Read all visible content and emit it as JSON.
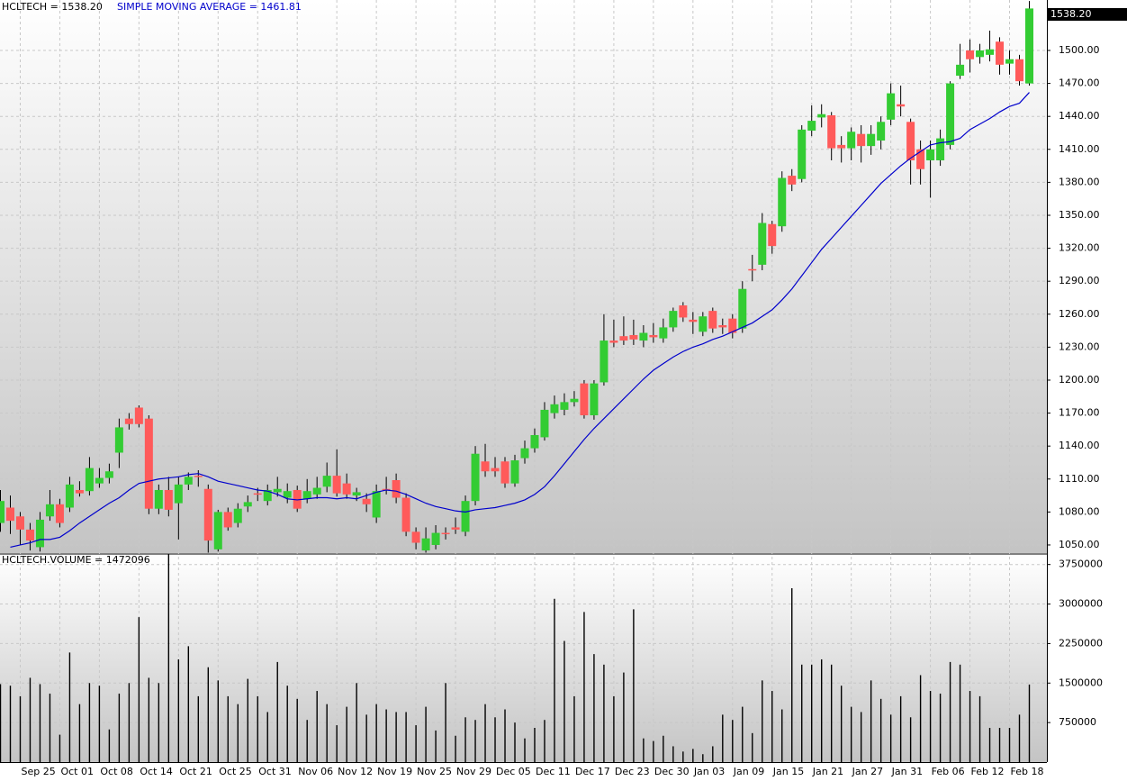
{
  "chart_data": [
    {
      "type": "candlestick",
      "title": "HCLTECH = 1538.20",
      "last_label": "1538.20",
      "up_color": "#33cc33",
      "down_color": "#ff5a5a",
      "categories": [
        null,
        null,
        "Sep 25",
        null,
        null,
        null,
        "Oct 01",
        null,
        null,
        null,
        "Oct 08",
        null,
        null,
        null,
        "Oct 14",
        null,
        null,
        null,
        "Oct 21",
        null,
        null,
        null,
        "Oct 25",
        null,
        null,
        null,
        "Oct 31",
        null,
        null,
        null,
        "Nov 06",
        null,
        null,
        null,
        "Nov 12",
        null,
        null,
        null,
        "Nov 19",
        null,
        null,
        null,
        "Nov 25",
        null,
        null,
        null,
        "Nov 29",
        null,
        null,
        null,
        "Dec 05",
        null,
        null,
        null,
        "Dec 11",
        null,
        null,
        null,
        "Dec 17",
        null,
        null,
        null,
        "Dec 23",
        null,
        null,
        null,
        "Dec 30",
        null,
        null,
        null,
        "Jan 03",
        null,
        null,
        null,
        "Jan 09",
        null,
        null,
        null,
        "Jan 15",
        null,
        null,
        null,
        "Jan 21",
        null,
        null,
        null,
        "Jan 27",
        null,
        null,
        null,
        "Jan 31",
        null,
        null,
        null,
        "Feb 06",
        null,
        null,
        null,
        "Feb 12",
        null,
        null,
        null,
        "Feb 18",
        null,
        null
      ],
      "open": [
        1070,
        1084,
        1076,
        1064,
        1048,
        1076,
        1087,
        1084,
        1100,
        1099,
        1106,
        1111,
        1134,
        1165,
        1175,
        1165,
        1083,
        1100,
        1088,
        1105,
        1113,
        1101,
        1046,
        1080,
        1070,
        1085,
        1097,
        1090,
        1098,
        1093,
        1100,
        1092,
        1096,
        1103,
        1113,
        1106,
        1095,
        1092,
        1075,
        1101,
        1109,
        1093,
        1062,
        1045,
        1050,
        1061,
        1066,
        1062,
        1090,
        1126,
        1120,
        1126,
        1106,
        1129,
        1138,
        1148,
        1170,
        1173,
        1180,
        1197,
        1168,
        1198,
        1236,
        1240,
        1241,
        1236,
        1241,
        1238,
        1248,
        1268,
        1255,
        1244,
        1263,
        1250,
        1256,
        1247,
        1301,
        1305,
        1342,
        1340,
        1386,
        1383,
        1427,
        1439,
        1441,
        1414,
        1411,
        1424,
        1413,
        1418,
        1437,
        1451,
        1435,
        1410,
        1400,
        1400,
        1414,
        1477,
        1500,
        1494,
        1496,
        1508,
        1488,
        1492,
        1470
      ],
      "high": [
        1100,
        1095,
        1080,
        1070,
        1080,
        1100,
        1092,
        1112,
        1108,
        1130,
        1120,
        1124,
        1165,
        1170,
        1177,
        1168,
        1105,
        1112,
        1112,
        1116,
        1118,
        1105,
        1082,
        1084,
        1088,
        1095,
        1102,
        1105,
        1112,
        1106,
        1104,
        1110,
        1112,
        1125,
        1137,
        1115,
        1102,
        1097,
        1105,
        1112,
        1115,
        1097,
        1066,
        1066,
        1068,
        1066,
        1075,
        1095,
        1140,
        1142,
        1130,
        1130,
        1132,
        1145,
        1156,
        1180,
        1186,
        1188,
        1190,
        1200,
        1200,
        1260,
        1255,
        1258,
        1255,
        1250,
        1252,
        1256,
        1266,
        1271,
        1262,
        1262,
        1266,
        1256,
        1260,
        1290,
        1314,
        1352,
        1345,
        1390,
        1392,
        1432,
        1450,
        1451,
        1444,
        1422,
        1430,
        1432,
        1432,
        1440,
        1470,
        1468,
        1438,
        1418,
        1418,
        1428,
        1472,
        1506,
        1510,
        1506,
        1518,
        1512,
        1500,
        1496,
        1545
      ],
      "low": [
        1062,
        1060,
        1050,
        1045,
        1044,
        1072,
        1066,
        1080,
        1094,
        1095,
        1102,
        1106,
        1120,
        1155,
        1157,
        1078,
        1078,
        1076,
        1055,
        1100,
        1103,
        1043,
        1044,
        1063,
        1066,
        1080,
        1090,
        1086,
        1094,
        1088,
        1080,
        1088,
        1092,
        1098,
        1094,
        1092,
        1090,
        1080,
        1070,
        1096,
        1088,
        1058,
        1046,
        1043,
        1046,
        1055,
        1060,
        1058,
        1086,
        1112,
        1112,
        1102,
        1103,
        1124,
        1134,
        1145,
        1165,
        1168,
        1176,
        1165,
        1164,
        1195,
        1230,
        1232,
        1232,
        1230,
        1234,
        1234,
        1244,
        1253,
        1242,
        1240,
        1243,
        1242,
        1238,
        1243,
        1290,
        1300,
        1315,
        1335,
        1372,
        1380,
        1422,
        1430,
        1400,
        1398,
        1400,
        1398,
        1405,
        1410,
        1432,
        1440,
        1378,
        1378,
        1366,
        1395,
        1410,
        1474,
        1480,
        1488,
        1490,
        1478,
        1478,
        1468,
        1468
      ],
      "close": [
        1090,
        1072,
        1064,
        1054,
        1073,
        1087,
        1070,
        1105,
        1097,
        1120,
        1111,
        1117,
        1157,
        1160,
        1160,
        1083,
        1100,
        1082,
        1105,
        1112,
        1112,
        1054,
        1080,
        1066,
        1083,
        1089,
        1096,
        1100,
        1101,
        1099,
        1083,
        1099,
        1102,
        1113,
        1097,
        1096,
        1098,
        1087,
        1099,
        1100,
        1093,
        1062,
        1052,
        1056,
        1061,
        1060,
        1064,
        1090,
        1133,
        1117,
        1117,
        1106,
        1127,
        1138,
        1150,
        1173,
        1178,
        1180,
        1183,
        1168,
        1197,
        1236,
        1234,
        1236,
        1237,
        1243,
        1239,
        1248,
        1263,
        1257,
        1253,
        1258,
        1247,
        1248,
        1243,
        1283,
        1300,
        1343,
        1322,
        1384,
        1378,
        1428,
        1436,
        1442,
        1411,
        1411,
        1426,
        1413,
        1424,
        1435,
        1461,
        1449,
        1400,
        1392,
        1410,
        1420,
        1470,
        1487,
        1492,
        1500,
        1501,
        1487,
        1492,
        1472,
        1538.2
      ],
      "sma": {
        "name": "SIMPLE MOVING AVERAGE = 1461.81",
        "color": "#0000cc",
        "values": [
          null,
          1048,
          1050,
          1052,
          1055,
          1055,
          1057,
          1063,
          1070,
          1076,
          1082,
          1088,
          1093,
          1100,
          1106,
          1108,
          1110,
          1111,
          1112,
          1114,
          1115,
          1112,
          1108,
          1106,
          1104,
          1102,
          1100,
          1099,
          1096,
          1092,
          1091,
          1092,
          1093,
          1093,
          1092,
          1093,
          1092,
          1095,
          1098,
          1100,
          1099,
          1096,
          1092,
          1088,
          1085,
          1083,
          1081,
          1080,
          1082,
          1083,
          1084,
          1086,
          1088,
          1091,
          1096,
          1103,
          1113,
          1124,
          1135,
          1146,
          1156,
          1165,
          1174,
          1183,
          1192,
          1201,
          1209,
          1215,
          1221,
          1226,
          1230,
          1233,
          1237,
          1240,
          1244,
          1248,
          1252,
          1258,
          1264,
          1273,
          1283,
          1295,
          1307,
          1319,
          1329,
          1339,
          1349,
          1359,
          1369,
          1379,
          1387,
          1395,
          1402,
          1408,
          1414,
          1416,
          1417,
          1420,
          1428,
          1433,
          1438,
          1444,
          1449,
          1452,
          1461.81
        ]
      },
      "ylim": [
        1042.6,
        1545.9
      ],
      "yticks": [
        {
          "value": 1050,
          "label": "1050.00"
        },
        {
          "value": 1080,
          "label": "1080.00"
        },
        {
          "value": 1110,
          "label": "1110.00"
        },
        {
          "value": 1140,
          "label": "1140.00"
        },
        {
          "value": 1170,
          "label": "1170.00"
        },
        {
          "value": 1200,
          "label": "1200.00"
        },
        {
          "value": 1230,
          "label": "1230.00"
        },
        {
          "value": 1260,
          "label": "1260.00"
        },
        {
          "value": 1290,
          "label": "1290.00"
        },
        {
          "value": 1320,
          "label": "1320.00"
        },
        {
          "value": 1350,
          "label": "1350.00"
        },
        {
          "value": 1380,
          "label": "1380.00"
        },
        {
          "value": 1410,
          "label": "1410.00"
        },
        {
          "value": 1440,
          "label": "1440.00"
        },
        {
          "value": 1470,
          "label": "1470.00"
        },
        {
          "value": 1500,
          "label": "1500.00"
        }
      ],
      "grid": true
    },
    {
      "type": "bar",
      "title": "HCLTECH.VOLUME = 1472096",
      "color": "#000000",
      "values": [
        1480000,
        1450000,
        1250000,
        1600000,
        1480000,
        1300000,
        520000,
        2080000,
        1100000,
        1500000,
        1450000,
        620000,
        1300000,
        1500000,
        2750000,
        1600000,
        1500000,
        3950000,
        1950000,
        2200000,
        1250000,
        1800000,
        1550000,
        1250000,
        1100000,
        1580000,
        1250000,
        950000,
        1900000,
        1450000,
        1200000,
        800000,
        1350000,
        1100000,
        700000,
        1050000,
        1500000,
        900000,
        1100000,
        1000000,
        950000,
        950000,
        700000,
        1050000,
        600000,
        1500000,
        500000,
        850000,
        800000,
        1100000,
        850000,
        1000000,
        750000,
        450000,
        650000,
        800000,
        3100000,
        2300000,
        1250000,
        2850000,
        2050000,
        1850000,
        1250000,
        1700000,
        2900000,
        450000,
        400000,
        500000,
        300000,
        200000,
        250000,
        150000,
        300000,
        900000,
        800000,
        1050000,
        550000,
        1550000,
        1350000,
        1000000,
        3300000,
        1850000,
        1850000,
        1950000,
        1850000,
        1450000,
        1050000,
        950000,
        1550000,
        1200000,
        900000,
        1250000,
        850000,
        1650000,
        1350000,
        1300000,
        1900000,
        1850000,
        1350000,
        1250000,
        650000,
        650000,
        650000,
        900000,
        1472096
      ],
      "ylim": [
        0,
        3950000
      ],
      "yticks": [
        750000,
        1500000,
        2250000,
        3000000,
        3750000
      ],
      "grid": true
    }
  ]
}
